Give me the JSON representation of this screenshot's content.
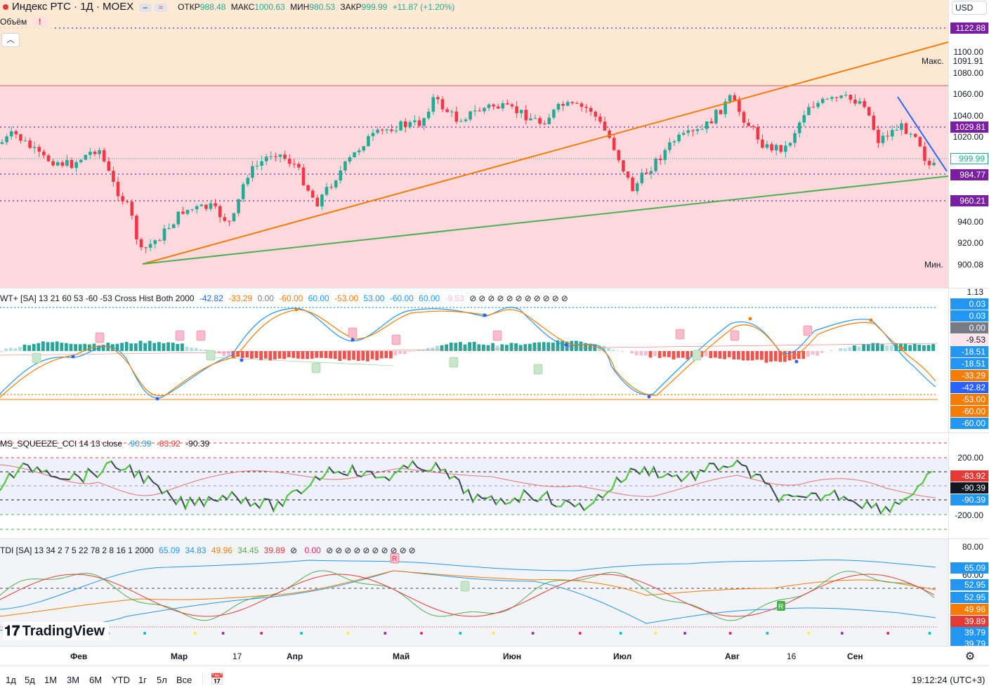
{
  "header": {
    "symbol": "Индекс РТС · 1Д · MOEX",
    "open_label": "ОТКР",
    "open": "988.48",
    "high_label": "МАКС",
    "high": "1000.63",
    "low_label": "МИН",
    "low": "980.53",
    "close_label": "ЗАКР",
    "close": "999.99",
    "change": "+11.87 (+1.20%)",
    "volume_label": "Объём",
    "currency": "USD"
  },
  "main_axis": {
    "ticks": [
      "1100.00",
      "1080.00",
      "1060.00",
      "1040.00",
      "1020.00",
      "940.00",
      "920.00"
    ],
    "max_label": "Макс.",
    "max_value": "1091.91",
    "min_label": "Мин.",
    "min_value": "900.08",
    "levels": [
      {
        "value": "1122.88",
        "color": "#7b1fa2"
      },
      {
        "value": "1029.81",
        "color": "#7b1fa2"
      },
      {
        "value": "999.99",
        "color": "#22ab94"
      },
      {
        "value": "984.77",
        "color": "#7b1fa2"
      },
      {
        "value": "960.21",
        "color": "#7b1fa2"
      }
    ]
  },
  "wt": {
    "title": "WT+ [SA] 13 21 60 53 -60 -53 Cross Hist Both 2000",
    "values": [
      {
        "v": "-42.82",
        "c": "#2962ff"
      },
      {
        "v": "-33.29",
        "c": "#f57c00"
      },
      {
        "v": "0.00",
        "c": "#787b86"
      },
      {
        "v": "-60.00",
        "c": "#f57c00"
      },
      {
        "v": "60.00",
        "c": "#2196f3"
      },
      {
        "v": "-53.00",
        "c": "#f57c00"
      },
      {
        "v": "53.00",
        "c": "#2196f3"
      },
      {
        "v": "-60.00",
        "c": "#2196f3"
      },
      {
        "v": "60.00",
        "c": "#2196f3"
      },
      {
        "v": "-9.53",
        "c": "#f8bbd0"
      }
    ],
    "axis_top": "1.13",
    "labels": [
      {
        "v": "0.03",
        "bg": "#2196f3",
        "fg": "#fff"
      },
      {
        "v": "0.03",
        "bg": "#2196f3",
        "fg": "#fff"
      },
      {
        "v": "0.00",
        "bg": "#787b86",
        "fg": "#fff"
      },
      {
        "v": "-9.53",
        "bg": "#fce4ec",
        "fg": "#131722"
      },
      {
        "v": "-18.51",
        "bg": "#2196f3",
        "fg": "#fff"
      },
      {
        "v": "-18.51",
        "bg": "#2196f3",
        "fg": "#fff"
      },
      {
        "v": "-33.29",
        "bg": "#f57c00",
        "fg": "#fff"
      },
      {
        "v": "-42.82",
        "bg": "#2962ff",
        "fg": "#fff"
      },
      {
        "v": "-53.00",
        "bg": "#f57c00",
        "fg": "#fff"
      },
      {
        "v": "-60.00",
        "bg": "#f57c00",
        "fg": "#fff"
      },
      {
        "v": "-60.00",
        "bg": "#2196f3",
        "fg": "#fff"
      }
    ]
  },
  "squeeze": {
    "title": "MS_SQUEEZE_CCI 14 13 close",
    "values": [
      {
        "v": "-90.39",
        "c": "#2196f3"
      },
      {
        "v": "-83.92",
        "c": "#e53935"
      },
      {
        "v": "-90.39",
        "c": "#131722"
      }
    ],
    "ticks": [
      "200.00",
      "-200.00"
    ],
    "labels": [
      {
        "v": "-83.92",
        "bg": "#e53935"
      },
      {
        "v": "-90.39",
        "bg": "#131722"
      },
      {
        "v": "-90.39",
        "bg": "#2196f3"
      }
    ]
  },
  "tdi": {
    "title": "TDI [SA] 13 34 2 7 5 22 78 2 8 16 1 2000",
    "values": [
      {
        "v": "65.09",
        "c": "#2196f3"
      },
      {
        "v": "34.83",
        "c": "#2196f3"
      },
      {
        "v": "49.96",
        "c": "#f57c00"
      },
      {
        "v": "34.45",
        "c": "#4caf50"
      },
      {
        "v": "39.89",
        "c": "#e53935"
      },
      {
        "v": "0.00",
        "c": "#e91e63"
      }
    ],
    "ticks": [
      "80.00",
      "60.00"
    ],
    "labels": [
      {
        "v": "65.09",
        "bg": "#2196f3"
      },
      {
        "v": "52.95",
        "bg": "#2196f3"
      },
      {
        "v": "52.95",
        "bg": "#2196f3"
      },
      {
        "v": "49.96",
        "bg": "#f57c00"
      },
      {
        "v": "39.89",
        "bg": "#e53935"
      },
      {
        "v": "39.79",
        "bg": "#2196f3"
      },
      {
        "v": "39.79",
        "bg": "#2196f3"
      }
    ]
  },
  "time_axis": [
    "Фев",
    "Мар",
    "17",
    "Апр",
    "Май",
    "Июн",
    "Июл",
    "Авг",
    "16",
    "Сен"
  ],
  "ranges": [
    "1д",
    "5д",
    "1М",
    "3М",
    "6М",
    "YTD",
    "1г",
    "5л",
    "Все"
  ],
  "clock": "19:12:24 (UTC+3)",
  "brand": "TradingView"
}
